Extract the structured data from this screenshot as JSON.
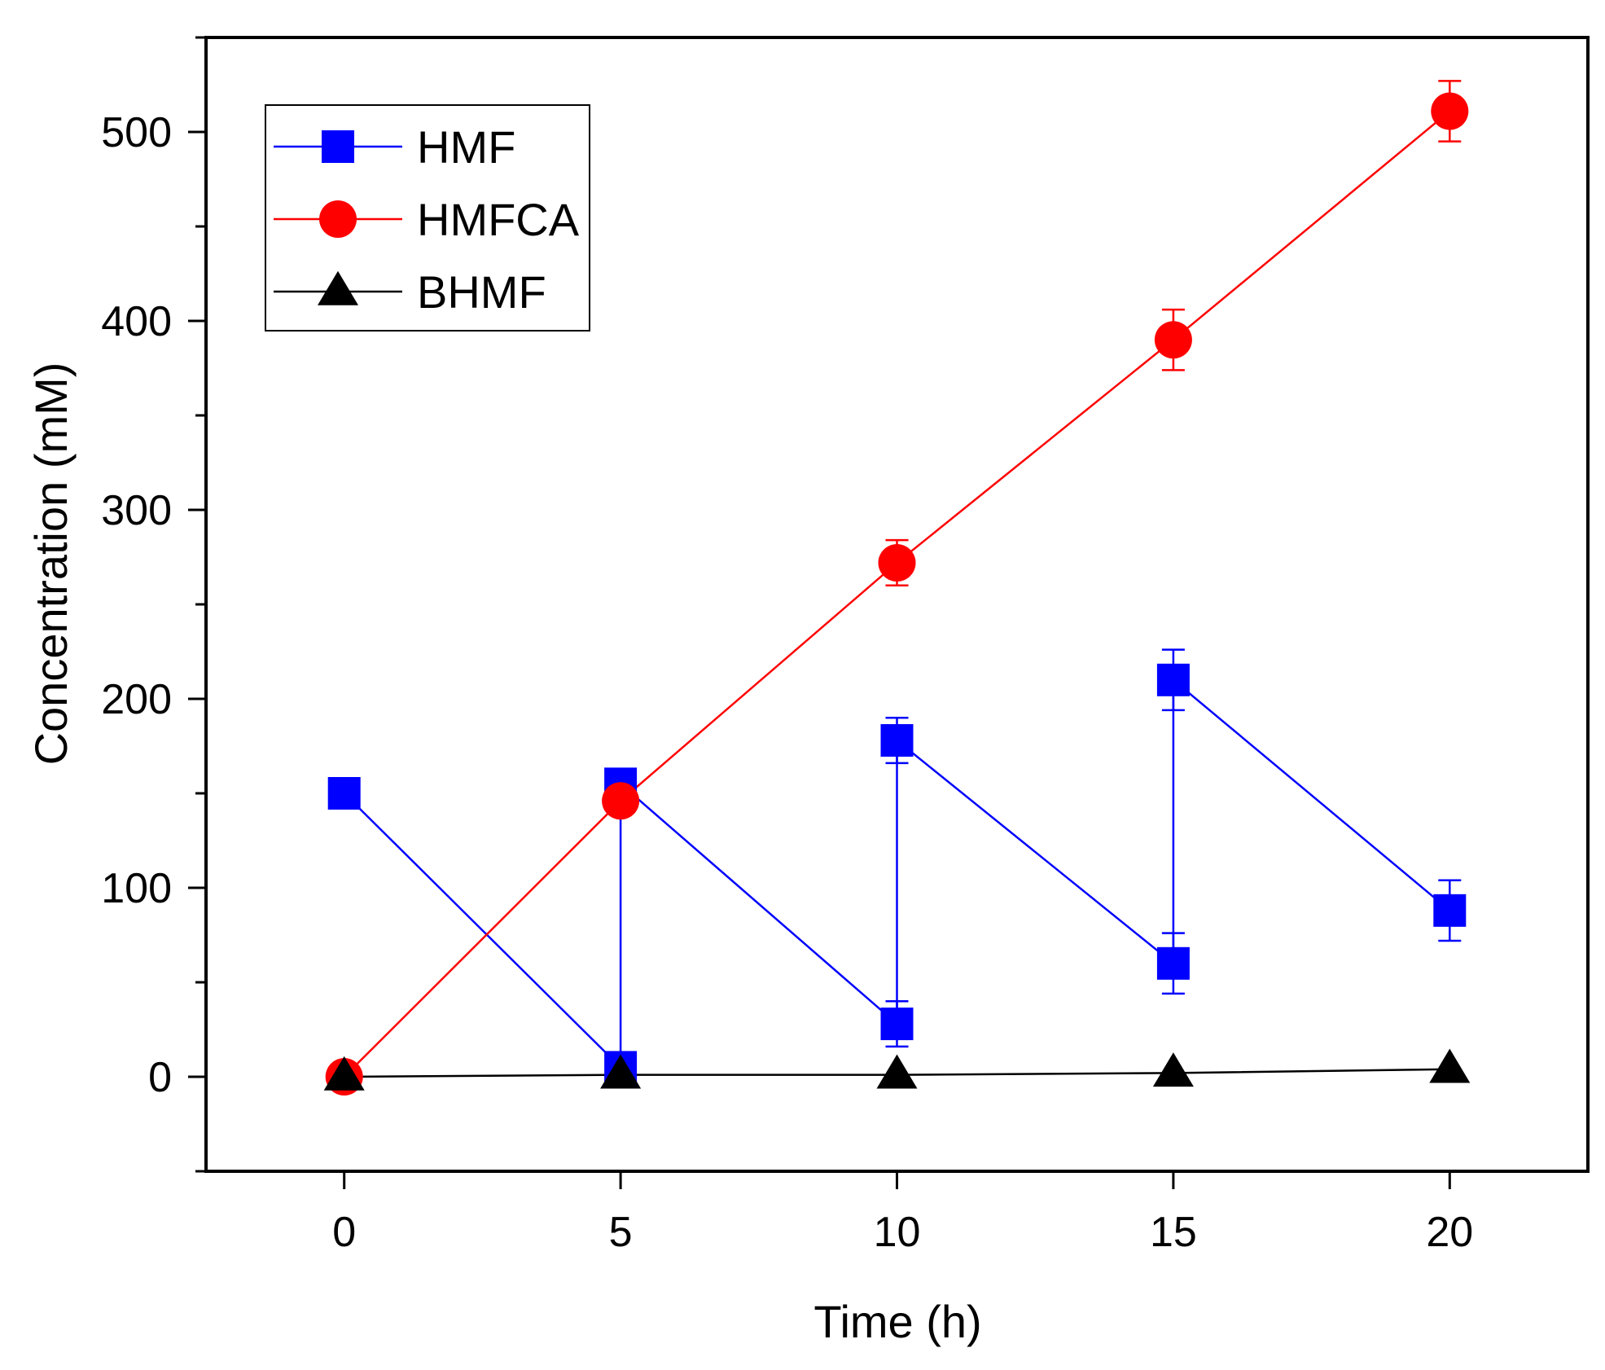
{
  "chart_data": {
    "type": "line",
    "title": "",
    "xlabel": "Time (h)",
    "ylabel": "Concentration (mM)",
    "xlim": [
      -2.5,
      22.5
    ],
    "ylim": [
      -50,
      550
    ],
    "x_ticks": [
      0,
      5,
      10,
      15,
      20
    ],
    "y_ticks": [
      0,
      100,
      200,
      300,
      400,
      500
    ],
    "y_minor_step": 50,
    "grid": false,
    "legend_position": "top-left",
    "series": [
      {
        "name": "HMF",
        "color": "#0000ff",
        "marker": "square",
        "points": [
          {
            "x": 0,
            "y": 150,
            "err": 0
          },
          {
            "x": 5,
            "y": 5,
            "err": 0
          },
          {
            "x": 5,
            "y": 155,
            "err": 0
          },
          {
            "x": 10,
            "y": 28,
            "err": 12
          },
          {
            "x": 10,
            "y": 178,
            "err": 12
          },
          {
            "x": 15,
            "y": 60,
            "err": 16
          },
          {
            "x": 15,
            "y": 210,
            "err": 16
          },
          {
            "x": 20,
            "y": 88,
            "err": 16
          }
        ]
      },
      {
        "name": "HMFCA",
        "color": "#ff0000",
        "marker": "circle",
        "points": [
          {
            "x": 0,
            "y": 0,
            "err": 0
          },
          {
            "x": 5,
            "y": 146,
            "err": 0
          },
          {
            "x": 10,
            "y": 272,
            "err": 12
          },
          {
            "x": 15,
            "y": 390,
            "err": 16
          },
          {
            "x": 20,
            "y": 511,
            "err": 16
          }
        ]
      },
      {
        "name": "BHMF",
        "color": "#000000",
        "marker": "triangle",
        "points": [
          {
            "x": 0,
            "y": 0,
            "err": 0
          },
          {
            "x": 5,
            "y": 1,
            "err": 0
          },
          {
            "x": 10,
            "y": 1,
            "err": 0
          },
          {
            "x": 15,
            "y": 2,
            "err": 0
          },
          {
            "x": 20,
            "y": 4,
            "err": 0
          }
        ]
      }
    ]
  }
}
